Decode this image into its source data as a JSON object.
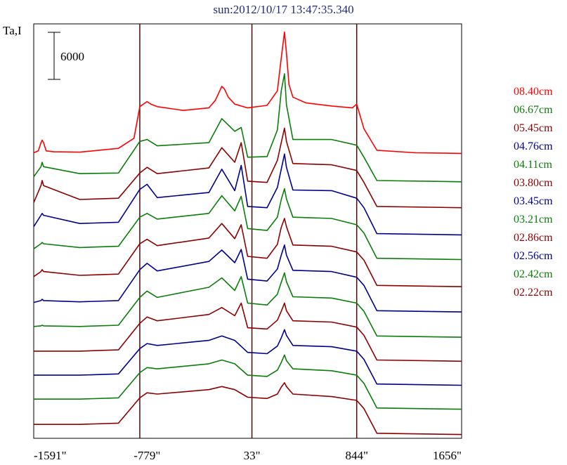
{
  "title": "sun:2012/10/17 13:47:35.340",
  "ylabel": "Ta,I",
  "chart_data": {
    "type": "line",
    "title": "sun:2012/10/17 13:47:35.340",
    "ylabel": "Ta,I",
    "xlabel": "",
    "x_ticks": [
      "-1591\"",
      "-779\"",
      "33\"",
      "844\"",
      "1656\""
    ],
    "x_tick_values": [
      -1591,
      -779,
      33,
      844,
      1656
    ],
    "xlim": [
      -1656,
      1656
    ],
    "vertical_lines": [
      -835,
      33,
      844
    ],
    "scale_bar": {
      "value": 6000,
      "label": "6000"
    },
    "series": [
      {
        "name": "08.40cm",
        "color": "#ff0000",
        "x": [
          -1656,
          -1620,
          -1600,
          -1591,
          -1580,
          -1560,
          -1500,
          -1300,
          -1000,
          -880,
          -835,
          -800,
          -779,
          -750,
          -700,
          -500,
          -300,
          -250,
          -200,
          -180,
          -150,
          -100,
          0,
          150,
          230,
          260,
          285,
          300,
          320,
          350,
          450,
          650,
          810,
          844,
          900,
          1000,
          1300,
          1656
        ],
        "y": [
          200,
          500,
          1800,
          2200,
          1800,
          500,
          350,
          300,
          900,
          2500,
          7500,
          8000,
          8300,
          7900,
          7500,
          6900,
          7300,
          8500,
          10700,
          10300,
          9000,
          7900,
          7300,
          7700,
          10000,
          15200,
          19300,
          16000,
          11000,
          9000,
          8100,
          7600,
          7300,
          7900,
          4000,
          600,
          200,
          100
        ]
      },
      {
        "name": "06.67cm",
        "color": "#0a7d0a",
        "x": [
          -1656,
          -1600,
          -1591,
          -1580,
          -1300,
          -1000,
          -835,
          -779,
          -700,
          -300,
          -200,
          -100,
          -50,
          0,
          150,
          230,
          260,
          285,
          300,
          350,
          650,
          844,
          900,
          1000,
          1656
        ],
        "y": [
          -3600,
          -2000,
          -1300,
          -2000,
          -3100,
          -3000,
          2000,
          2300,
          1300,
          1800,
          5600,
          3600,
          4200,
          -500,
          -400,
          3800,
          10000,
          12700,
          7800,
          2300,
          2300,
          1400,
          -500,
          -4200,
          -4400
        ]
      },
      {
        "name": "05.45cm",
        "color": "#8b0000",
        "x": [
          -1656,
          -1600,
          -1591,
          -1580,
          -1300,
          -1000,
          -835,
          -779,
          -700,
          -300,
          -200,
          -100,
          -50,
          0,
          150,
          230,
          260,
          285,
          300,
          350,
          650,
          844,
          900,
          1000,
          1656
        ],
        "y": [
          -7700,
          -5000,
          -4200,
          -5000,
          -7200,
          -7000,
          -3000,
          -2100,
          -3100,
          -2200,
          1000,
          -1300,
          1800,
          -4300,
          -4500,
          -1000,
          1800,
          4100,
          2000,
          -1500,
          -1700,
          -2600,
          -4500,
          -8300,
          -8500
        ]
      },
      {
        "name": "04.76cm",
        "color": "#00008b",
        "x": [
          -1656,
          -1600,
          -1591,
          -1580,
          -1300,
          -1000,
          -835,
          -779,
          -700,
          -300,
          -200,
          -100,
          -50,
          0,
          150,
          230,
          260,
          285,
          300,
          350,
          650,
          844,
          900,
          1000,
          1656
        ],
        "y": [
          -11500,
          -9700,
          -9400,
          -9700,
          -11000,
          -10800,
          -5600,
          -4800,
          -6900,
          -6100,
          -2400,
          -5800,
          -1800,
          -8300,
          -8500,
          -5300,
          -2400,
          0,
          -2100,
          -5700,
          -5800,
          -7000,
          -8500,
          -12600,
          -12800
        ]
      },
      {
        "name": "04.11cm",
        "color": "#0a7d0a",
        "x": [
          -1656,
          -1600,
          -1591,
          -1580,
          -1300,
          -1000,
          -835,
          -779,
          -700,
          -300,
          -200,
          -100,
          -50,
          0,
          150,
          230,
          260,
          285,
          300,
          350,
          650,
          844,
          900,
          1000,
          1656
        ],
        "y": [
          -15000,
          -14200,
          -14000,
          -14200,
          -14800,
          -14600,
          -10000,
          -9400,
          -10300,
          -9400,
          -6600,
          -9000,
          -6700,
          -11800,
          -12100,
          -10000,
          -7200,
          -5500,
          -7100,
          -10000,
          -10200,
          -11200,
          -12500,
          -16500,
          -16700
        ]
      },
      {
        "name": "03.80cm",
        "color": "#8b0000",
        "x": [
          -1656,
          -1600,
          -1591,
          -1580,
          -1300,
          -1000,
          -835,
          -779,
          -700,
          -300,
          -200,
          -100,
          -50,
          0,
          150,
          230,
          260,
          285,
          300,
          350,
          650,
          844,
          900,
          1000,
          1656
        ],
        "y": [
          -19400,
          -18600,
          -18300,
          -18600,
          -19200,
          -19000,
          -14200,
          -13500,
          -14500,
          -13300,
          -11000,
          -13400,
          -11200,
          -16200,
          -16500,
          -14300,
          -11600,
          -10200,
          -11500,
          -14400,
          -14600,
          -15500,
          -16800,
          -20800,
          -21000
        ]
      },
      {
        "name": "03.45cm",
        "color": "#00008b",
        "x": [
          -1656,
          -1600,
          -1591,
          -1580,
          -1300,
          -1000,
          -835,
          -779,
          -700,
          -300,
          -200,
          -100,
          -50,
          0,
          150,
          230,
          260,
          285,
          300,
          350,
          650,
          844,
          900,
          1000,
          1656
        ],
        "y": [
          -23500,
          -23200,
          -23000,
          -23200,
          -23400,
          -23200,
          -18300,
          -17300,
          -18500,
          -17000,
          -15200,
          -17200,
          -15100,
          -19800,
          -20100,
          -18200,
          -16000,
          -14400,
          -16000,
          -18400,
          -18600,
          -19500,
          -20800,
          -24800,
          -25000
        ]
      },
      {
        "name": "03.21cm",
        "color": "#0a7d0a",
        "x": [
          -1656,
          -1600,
          -1591,
          -1580,
          -1300,
          -1000,
          -835,
          -779,
          -700,
          -300,
          -200,
          -100,
          -50,
          0,
          150,
          230,
          260,
          285,
          300,
          350,
          650,
          844,
          900,
          1000,
          1656
        ],
        "y": [
          -27300,
          -27200,
          -27100,
          -27200,
          -27300,
          -27100,
          -22700,
          -21700,
          -22700,
          -21100,
          -19600,
          -21600,
          -19400,
          -23600,
          -23900,
          -22200,
          -20300,
          -18800,
          -20200,
          -22600,
          -22800,
          -23600,
          -24900,
          -28800,
          -29000
        ]
      },
      {
        "name": "02.86cm",
        "color": "#8b0000",
        "x": [
          -1656,
          -1300,
          -1000,
          -835,
          -779,
          -700,
          -300,
          -200,
          -100,
          -50,
          0,
          150,
          230,
          260,
          285,
          300,
          350,
          650,
          844,
          900,
          1000,
          1656
        ],
        "y": [
          -31200,
          -31200,
          -31000,
          -26800,
          -25800,
          -26400,
          -25400,
          -24300,
          -25600,
          -23600,
          -27500,
          -27700,
          -26300,
          -24900,
          -23600,
          -24800,
          -26400,
          -26600,
          -27400,
          -28700,
          -32600,
          -32800
        ]
      },
      {
        "name": "02.56cm",
        "color": "#00008b",
        "x": [
          -1656,
          -1300,
          -1000,
          -835,
          -779,
          -700,
          -300,
          -200,
          -100,
          0,
          150,
          230,
          260,
          285,
          300,
          350,
          650,
          844,
          900,
          1000,
          1656
        ],
        "y": [
          -35000,
          -35000,
          -34800,
          -30800,
          -30000,
          -30300,
          -29500,
          -28800,
          -29500,
          -31400,
          -31600,
          -30400,
          -29100,
          -27800,
          -28700,
          -30300,
          -30500,
          -31200,
          -32500,
          -36400,
          -36600
        ]
      },
      {
        "name": "02.42cm",
        "color": "#0a7d0a",
        "x": [
          -1656,
          -1300,
          -1000,
          -835,
          -779,
          -700,
          -300,
          -200,
          -100,
          0,
          150,
          230,
          260,
          285,
          300,
          350,
          650,
          844,
          900,
          1000,
          1656
        ],
        "y": [
          -38800,
          -38800,
          -38600,
          -34600,
          -33800,
          -34000,
          -33200,
          -32600,
          -33200,
          -35000,
          -35200,
          -34200,
          -33000,
          -31800,
          -32700,
          -34000,
          -34300,
          -35000,
          -36300,
          -40200,
          -40400
        ]
      },
      {
        "name": "02.22cm",
        "color": "#8b0000",
        "x": [
          -1656,
          -1300,
          -1000,
          -835,
          -779,
          -700,
          -300,
          -200,
          -100,
          0,
          150,
          230,
          260,
          285,
          300,
          350,
          650,
          844,
          900,
          1000,
          1656
        ],
        "y": [
          -42800,
          -42800,
          -42600,
          -38600,
          -37800,
          -38000,
          -37300,
          -36800,
          -37300,
          -38500,
          -38700,
          -38000,
          -36900,
          -36200,
          -36800,
          -38000,
          -38400,
          -39000,
          -40300,
          -44200,
          -44400
        ]
      }
    ],
    "grid": false,
    "legend_placement": "right"
  }
}
